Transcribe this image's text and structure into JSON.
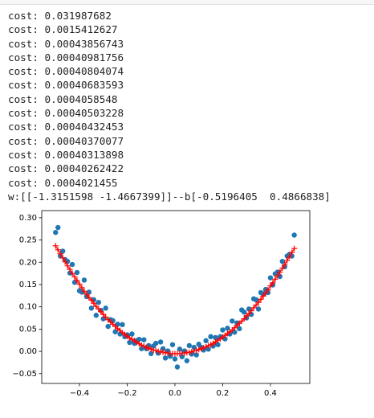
{
  "output_lines": [
    "cost: 0.031987682",
    "cost: 0.0015412627",
    "cost: 0.00043856743",
    "cost: 0.00040981756",
    "cost: 0.00040804074",
    "cost: 0.00040683593",
    "cost: 0.0004058548",
    "cost: 0.00040503228",
    "cost: 0.00040432453",
    "cost: 0.00040370077",
    "cost: 0.00040313898",
    "cost: 0.00040262422",
    "cost: 0.0004021455",
    "w:[[-1.3151598 -1.4667399]]--b[-0.5196405  0.4866838]"
  ],
  "chart_data": {
    "type": "scatter",
    "x": [
      -0.5,
      -0.49,
      -0.48,
      -0.47,
      -0.46,
      -0.45,
      -0.44,
      -0.43,
      -0.42,
      -0.41,
      -0.4,
      -0.39,
      -0.38,
      -0.37,
      -0.36,
      -0.35,
      -0.34,
      -0.33,
      -0.32,
      -0.31,
      -0.3,
      -0.29,
      -0.28,
      -0.27,
      -0.26,
      -0.25,
      -0.24,
      -0.23,
      -0.22,
      -0.21,
      -0.2,
      -0.19,
      -0.18,
      -0.17,
      -0.16,
      -0.15,
      -0.14,
      -0.13,
      -0.12,
      -0.11,
      -0.1,
      -0.09,
      -0.08,
      -0.07,
      -0.06,
      -0.05,
      -0.04,
      -0.03,
      -0.02,
      -0.01,
      0,
      0.01,
      0.02,
      0.03,
      0.04,
      0.05,
      0.06,
      0.07,
      0.08,
      0.09,
      0.1,
      0.11,
      0.12,
      0.13,
      0.14,
      0.15,
      0.16,
      0.17,
      0.18,
      0.19,
      0.2,
      0.21,
      0.22,
      0.23,
      0.24,
      0.25,
      0.26,
      0.27,
      0.28,
      0.29,
      0.3,
      0.31,
      0.32,
      0.33,
      0.34,
      0.35,
      0.36,
      0.37,
      0.38,
      0.39,
      0.4,
      0.41,
      0.42,
      0.43,
      0.44,
      0.45,
      0.46,
      0.47,
      0.48,
      0.49,
      0.5
    ],
    "series": [
      {
        "color": "#1f77b4",
        "marker": "circle",
        "values": [
          0.267,
          0.278,
          0.214,
          0.225,
          0.206,
          0.202,
          0.176,
          0.195,
          0.155,
          0.177,
          0.136,
          0.133,
          0.16,
          0.123,
          0.133,
          0.097,
          0.116,
          0.081,
          0.11,
          0.092,
          0.073,
          0.097,
          0.056,
          0.071,
          0.069,
          0.044,
          0.061,
          0.039,
          0.06,
          0.033,
          0.037,
          0.02,
          0.039,
          0.018,
          0.024,
          0.027,
          0.006,
          0.026,
          0.006,
          0.013,
          -0.005,
          0.012,
          0.018,
          -0.004,
          0.021,
          0.006,
          -0.015,
          0.001,
          -0.011,
          0.015,
          -0.017,
          -0.035,
          0.005,
          -0.012,
          0.001,
          -0.021,
          0.013,
          -0.006,
          0.009,
          -0.008,
          0.016,
          0.009,
          0.003,
          0.024,
          0.005,
          0.033,
          0.012,
          0.031,
          0.015,
          0.033,
          0.048,
          0.028,
          0.052,
          0.039,
          0.068,
          0.043,
          0.064,
          0.051,
          0.093,
          0.088,
          0.075,
          0.095,
          0.083,
          0.118,
          0.116,
          0.095,
          0.132,
          0.129,
          0.139,
          0.132,
          0.165,
          0.149,
          0.174,
          0.178,
          0.168,
          0.202,
          0.19,
          0.214,
          0.218,
          0.214,
          0.261
        ]
      },
      {
        "color": "#ff0000",
        "marker": "plus",
        "line": true,
        "values": [
          0.237,
          0.228,
          0.219,
          0.21,
          0.201,
          0.192,
          0.184,
          0.175,
          0.167,
          0.159,
          0.151,
          0.143,
          0.135,
          0.128,
          0.121,
          0.115,
          0.108,
          0.101,
          0.095,
          0.089,
          0.083,
          0.077,
          0.071,
          0.066,
          0.061,
          0.056,
          0.051,
          0.047,
          0.042,
          0.038,
          0.034,
          0.03,
          0.027,
          0.024,
          0.02,
          0.017,
          0.014,
          0.012,
          0.009,
          0.007,
          0.005,
          0.003,
          0.002,
          0.0,
          -0.001,
          -0.002,
          -0.003,
          -0.004,
          -0.005,
          -0.005,
          -0.005,
          -0.005,
          -0.005,
          -0.004,
          -0.004,
          -0.003,
          -0.002,
          -0.001,
          0.001,
          0.002,
          0.004,
          0.006,
          0.008,
          0.01,
          0.013,
          0.015,
          0.018,
          0.021,
          0.025,
          0.028,
          0.032,
          0.036,
          0.04,
          0.044,
          0.048,
          0.053,
          0.058,
          0.063,
          0.068,
          0.073,
          0.08,
          0.085,
          0.091,
          0.098,
          0.104,
          0.11,
          0.117,
          0.124,
          0.131,
          0.138,
          0.147,
          0.154,
          0.162,
          0.17,
          0.178,
          0.187,
          0.195,
          0.204,
          0.213,
          0.222,
          0.231
        ]
      }
    ],
    "xlim": [
      -0.558,
      0.565
    ],
    "xticks": [
      {
        "value": -0.4,
        "label": "−0.4"
      },
      {
        "value": -0.2,
        "label": "−0.2"
      },
      {
        "value": 0,
        "label": "0.0"
      },
      {
        "value": 0.2,
        "label": "0.2"
      },
      {
        "value": 0.4,
        "label": "0.4"
      }
    ],
    "ylim": [
      -0.072,
      0.316
    ],
    "yticks": [
      {
        "value": -0.05,
        "label": "−0.05"
      },
      {
        "value": 0,
        "label": "0.00"
      },
      {
        "value": 0.05,
        "label": "0.05"
      },
      {
        "value": 0.1,
        "label": "0.10"
      },
      {
        "value": 0.15,
        "label": "0.15"
      },
      {
        "value": 0.2,
        "label": "0.20"
      },
      {
        "value": 0.25,
        "label": "0.25"
      },
      {
        "value": 0.3,
        "label": "0.30"
      }
    ],
    "grid": false
  }
}
